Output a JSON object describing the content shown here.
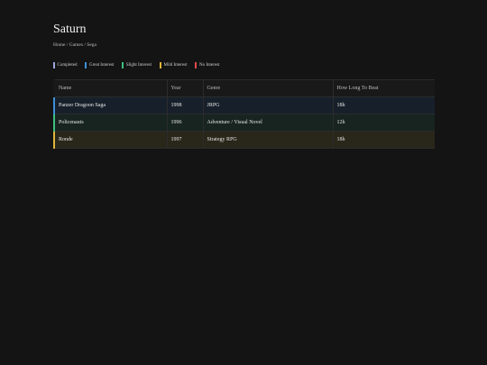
{
  "page": {
    "title": "Saturn"
  },
  "breadcrumb": {
    "home": "Home",
    "separator": "/",
    "games": "Games",
    "current": "Sega"
  },
  "legend": [
    {
      "label": "Completed",
      "color": "#9da4e0"
    },
    {
      "label": "Great Interest",
      "color": "#3f8fd6"
    },
    {
      "label": "Slight Interest",
      "color": "#3fbf7f"
    },
    {
      "label": "Mild Interest",
      "color": "#e0b43a"
    },
    {
      "label": "No Interest",
      "color": "#e04a4a"
    }
  ],
  "table": {
    "columns": [
      "Name",
      "Year",
      "Genre",
      "How Long To Beat"
    ],
    "rows": [
      {
        "name": "Panzer Dragoon Saga",
        "year": "1998",
        "genre": "JRPG",
        "hltb": "18h",
        "status": "Great Interest",
        "accent": "#3f8fd6",
        "bg": "#17202a"
      },
      {
        "name": "Policenauts",
        "year": "1996",
        "genre": "Adventure / Visual Novel",
        "hltb": "12h",
        "status": "Slight Interest",
        "accent": "#3fbf7f",
        "bg": "#172420"
      },
      {
        "name": "Ronde",
        "year": "1997",
        "genre": "Strategy RPG",
        "hltb": "18h",
        "status": "Mild Interest",
        "accent": "#e0b43a",
        "bg": "#29261a"
      }
    ]
  }
}
